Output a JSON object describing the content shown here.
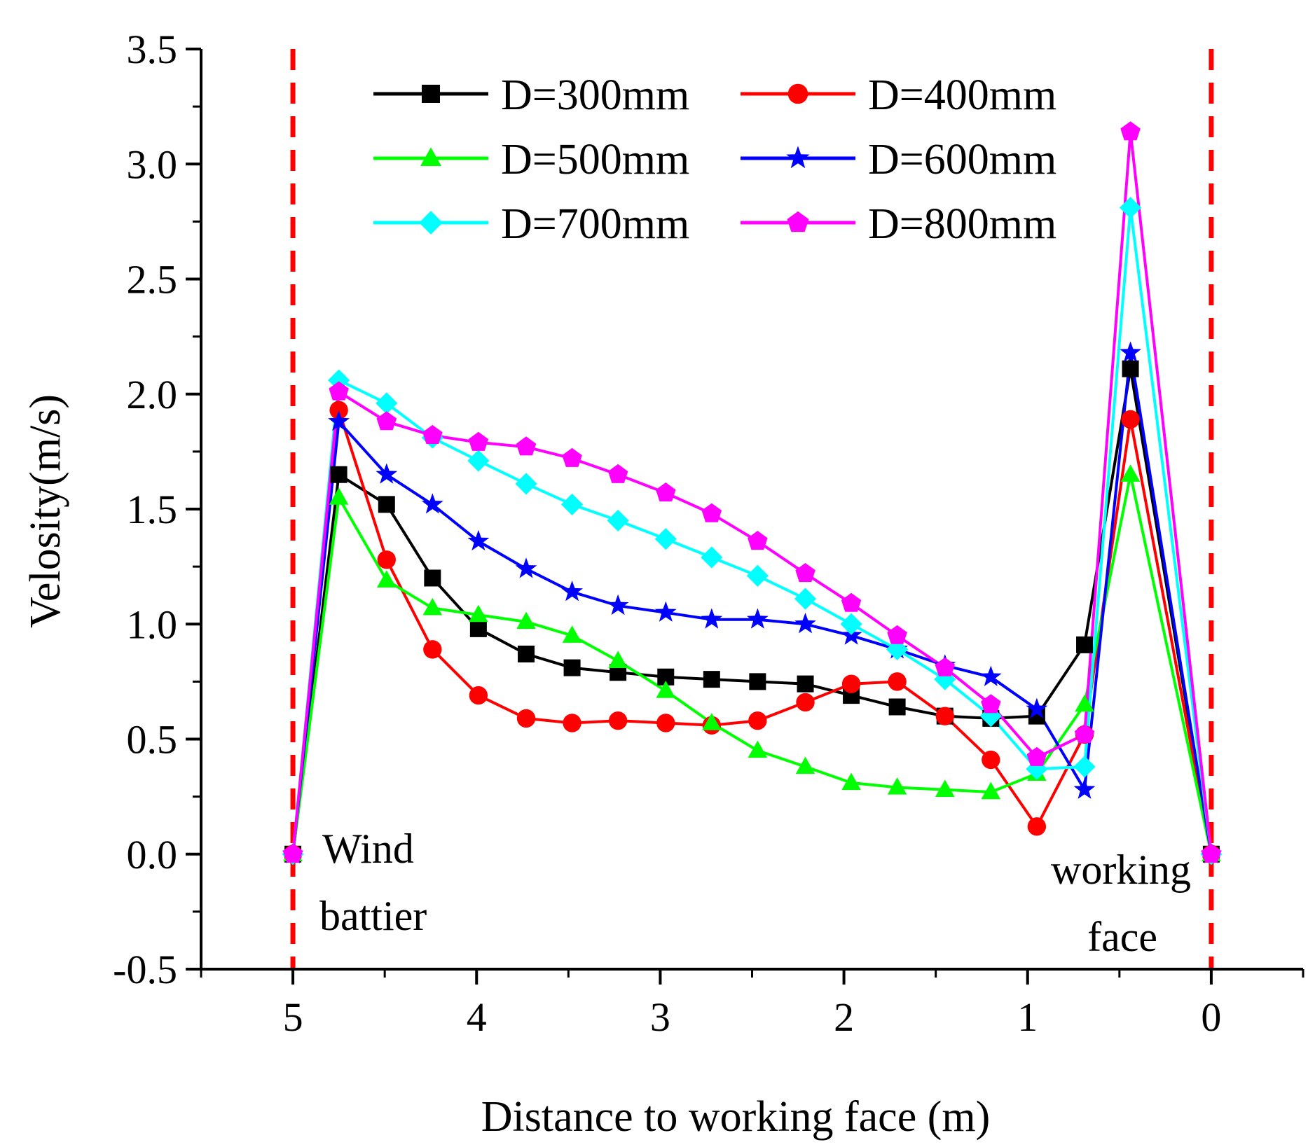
{
  "chart_data": {
    "type": "line",
    "title": "",
    "xlabel": "Distance to working face (m)",
    "ylabel": "Velosity(m/s)",
    "xlim": [
      5.5,
      -0.5
    ],
    "ylim": [
      -0.5,
      3.5
    ],
    "x_ticks": [
      {
        "value": 5,
        "label": "5"
      },
      {
        "value": 4,
        "label": "4"
      },
      {
        "value": 3,
        "label": "3"
      },
      {
        "value": 2,
        "label": "2"
      },
      {
        "value": 1,
        "label": "1"
      },
      {
        "value": 0,
        "label": "0"
      }
    ],
    "y_ticks": [
      {
        "value": -0.5,
        "label": "-0.5"
      },
      {
        "value": 0.0,
        "label": "0.0"
      },
      {
        "value": 0.5,
        "label": "0.5"
      },
      {
        "value": 1.0,
        "label": "1.0"
      },
      {
        "value": 1.5,
        "label": "1.5"
      },
      {
        "value": 2.0,
        "label": "2.0"
      },
      {
        "value": 2.5,
        "label": "2.5"
      },
      {
        "value": 3.0,
        "label": "3.0"
      },
      {
        "value": 3.5,
        "label": "3.5"
      }
    ],
    "grid": false,
    "legend_position": "top",
    "x": [
      5.0,
      4.75,
      4.49,
      4.24,
      3.99,
      3.73,
      3.48,
      3.23,
      2.97,
      2.72,
      2.47,
      2.21,
      1.96,
      1.71,
      1.45,
      1.2,
      0.95,
      0.69,
      0.44,
      0.0
    ],
    "series": [
      {
        "name": "D=300mm",
        "color": "#000000",
        "marker": "square",
        "values": [
          0.0,
          1.65,
          1.52,
          1.2,
          0.98,
          0.87,
          0.81,
          0.79,
          0.77,
          0.76,
          0.75,
          0.74,
          0.69,
          0.64,
          0.6,
          0.59,
          0.6,
          0.91,
          2.11,
          0.0
        ]
      },
      {
        "name": "D=400mm",
        "color": "#ff0000",
        "marker": "circle",
        "values": [
          0.0,
          1.93,
          1.28,
          0.89,
          0.69,
          0.59,
          0.57,
          0.58,
          0.57,
          0.56,
          0.58,
          0.66,
          0.74,
          0.75,
          0.6,
          0.41,
          0.12,
          0.52,
          1.89,
          0.0
        ]
      },
      {
        "name": "D=500mm",
        "color": "#00ff00",
        "marker": "triangle",
        "values": [
          0.0,
          1.55,
          1.19,
          1.07,
          1.04,
          1.01,
          0.95,
          0.84,
          0.71,
          0.57,
          0.45,
          0.38,
          0.31,
          0.29,
          0.28,
          0.27,
          0.35,
          0.65,
          1.65,
          0.0
        ]
      },
      {
        "name": "D=600mm",
        "color": "#0000ff",
        "marker": "star",
        "values": [
          0.0,
          1.88,
          1.65,
          1.52,
          1.36,
          1.24,
          1.14,
          1.08,
          1.05,
          1.02,
          1.02,
          1.0,
          0.95,
          0.89,
          0.82,
          0.77,
          0.63,
          0.28,
          2.18,
          0.0
        ]
      },
      {
        "name": "D=700mm",
        "color": "#00ffff",
        "marker": "diamond",
        "values": [
          0.0,
          2.06,
          1.96,
          1.81,
          1.71,
          1.61,
          1.52,
          1.45,
          1.37,
          1.29,
          1.21,
          1.11,
          1.0,
          0.89,
          0.76,
          0.6,
          0.37,
          0.38,
          2.81,
          0.0
        ]
      },
      {
        "name": "D=800mm",
        "color": "#ff00ff",
        "marker": "pentagon",
        "values": [
          0.0,
          2.01,
          1.88,
          1.82,
          1.79,
          1.77,
          1.72,
          1.65,
          1.57,
          1.48,
          1.36,
          1.22,
          1.09,
          0.95,
          0.81,
          0.65,
          0.42,
          0.52,
          3.14,
          0.0
        ]
      }
    ],
    "reference_lines": [
      {
        "axis": "x",
        "value": 5,
        "color": "#ff0000",
        "style": "dashed"
      },
      {
        "axis": "x",
        "value": 0,
        "color": "#ff0000",
        "style": "dashed"
      }
    ],
    "annotations": {
      "left": [
        "Wind",
        "battier"
      ],
      "right": [
        "working",
        "face"
      ]
    }
  }
}
